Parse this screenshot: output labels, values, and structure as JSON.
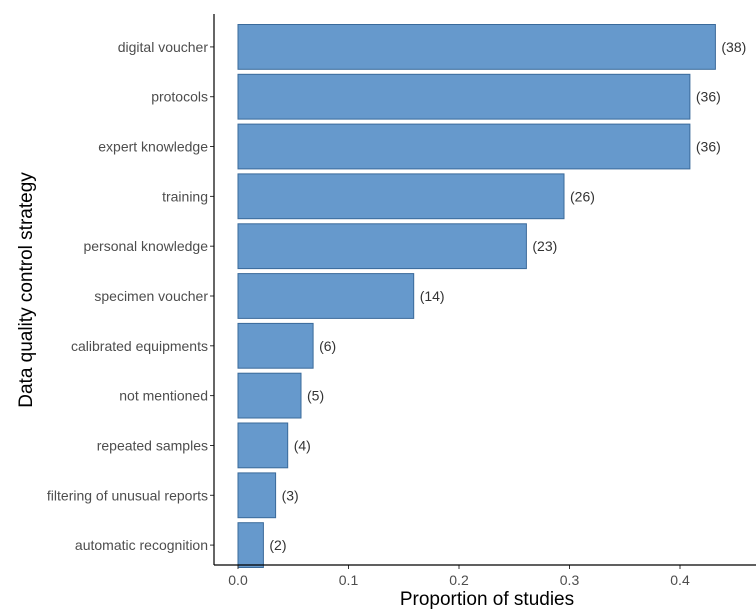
{
  "chart_data": {
    "type": "bar",
    "orientation": "horizontal",
    "xlabel": "Proportion of studies",
    "ylabel": "Data quality control strategy",
    "xlim": [
      0,
      0.46
    ],
    "x_ticks": [
      "0.0",
      "0.1",
      "0.2",
      "0.3",
      "0.4"
    ],
    "bar_color": "#6699cc",
    "bar_edge_color": "#3a6a9a",
    "grid": false,
    "categories": [
      "digital voucher",
      "protocols",
      "expert knowledge",
      "training",
      "personal knowledge",
      "specimen voucher",
      "calibrated equipments",
      "not mentioned",
      "repeated samples",
      "filtering of unusual reports",
      "automatic recognition"
    ],
    "values": [
      0.432,
      0.409,
      0.409,
      0.295,
      0.261,
      0.159,
      0.068,
      0.057,
      0.045,
      0.034,
      0.023
    ],
    "data_labels": [
      "(38)",
      "(36)",
      "(36)",
      "(26)",
      "(23)",
      "(14)",
      "(6)",
      "(5)",
      "(4)",
      "(3)",
      "(2)"
    ]
  }
}
